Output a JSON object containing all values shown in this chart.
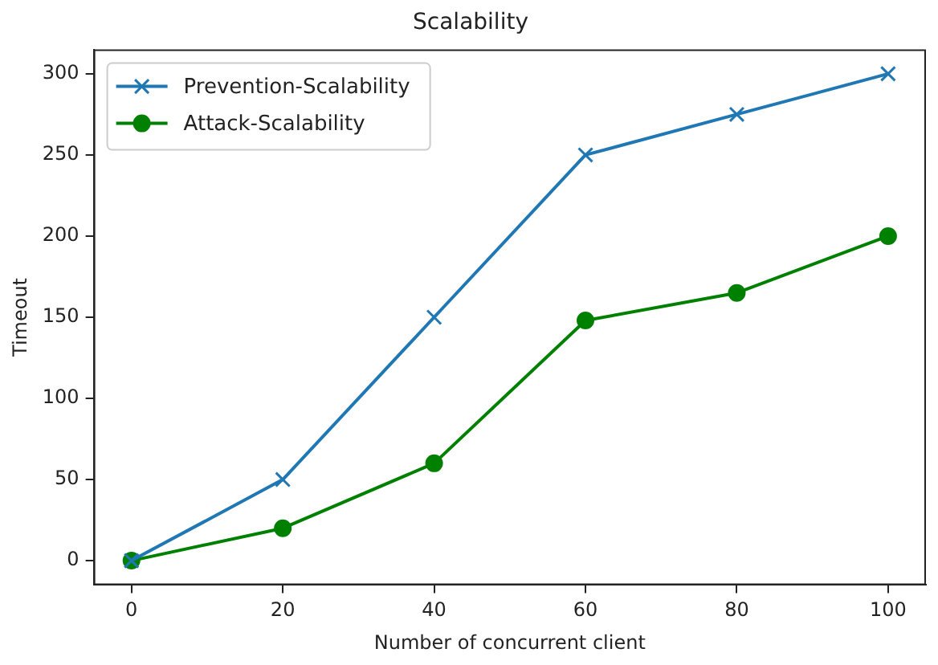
{
  "chart_data": {
    "type": "line",
    "title": "Scalability",
    "xlabel": "Number of concurrent client",
    "ylabel": "Timeout",
    "x": [
      0,
      20,
      40,
      60,
      80,
      100
    ],
    "series": [
      {
        "name": "Prevention-Scalability",
        "color": "#1f77b4",
        "marker": "cross",
        "values": [
          0,
          50,
          150,
          250,
          275,
          300
        ]
      },
      {
        "name": "Attack-Scalability",
        "color": "#008000",
        "marker": "circle",
        "values": [
          0,
          20,
          60,
          148,
          165,
          200
        ]
      }
    ],
    "xlim": [
      -5,
      105
    ],
    "xticks": [
      0,
      20,
      40,
      60,
      80,
      100
    ],
    "ylim": [
      -15,
      315
    ],
    "yticks": [
      0,
      50,
      100,
      150,
      200,
      250,
      300
    ],
    "grid": false,
    "legend": "top left"
  }
}
